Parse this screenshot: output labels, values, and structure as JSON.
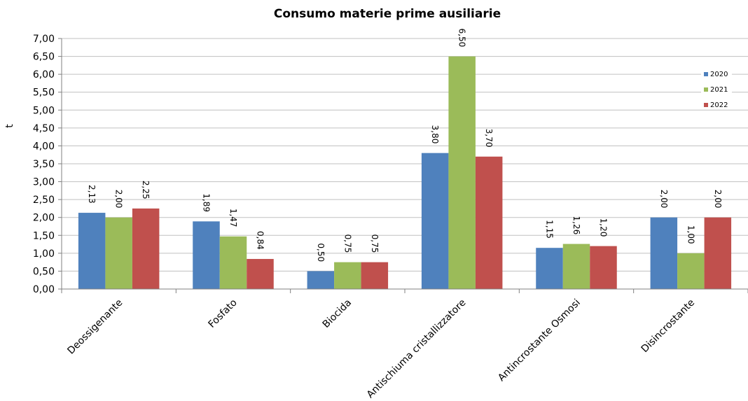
{
  "chart_data": {
    "type": "bar",
    "title": "Consumo materie prime ausiliarie",
    "xlabel": "",
    "ylabel": "t",
    "ylim": [
      0,
      7
    ],
    "ytick_step": 0.5,
    "yticks": [
      "0,00",
      "0,50",
      "1,00",
      "1,50",
      "2,00",
      "2,50",
      "3,00",
      "3,50",
      "4,00",
      "4,50",
      "5,00",
      "5,50",
      "6,00",
      "6,50",
      "7,00"
    ],
    "grid": true,
    "legend_position": "right",
    "categories": [
      "Deossigenante",
      "Fosfato",
      "Biocida",
      "Antischiuma cristallizzatore",
      "Antincrostante Osmosi",
      "Disincrostante"
    ],
    "series": [
      {
        "name": "2020",
        "color": "#4f81bd",
        "values": [
          2.13,
          1.89,
          0.5,
          3.8,
          1.15,
          2.0
        ],
        "labels": [
          "2,13",
          "1,89",
          "0,50",
          "3,80",
          "1,15",
          "2,00"
        ]
      },
      {
        "name": "2021",
        "color": "#9bbb59",
        "values": [
          2.0,
          1.47,
          0.75,
          6.5,
          1.26,
          1.0
        ],
        "labels": [
          "2,00",
          "1,47",
          "0,75",
          "6,50",
          "1,26",
          "1,00"
        ]
      },
      {
        "name": "2022",
        "color": "#c0504d",
        "values": [
          2.25,
          0.84,
          0.75,
          3.7,
          1.2,
          2.0
        ],
        "labels": [
          "2,25",
          "0,84",
          "0,75",
          "3,70",
          "1,20",
          "2,00"
        ]
      }
    ]
  }
}
